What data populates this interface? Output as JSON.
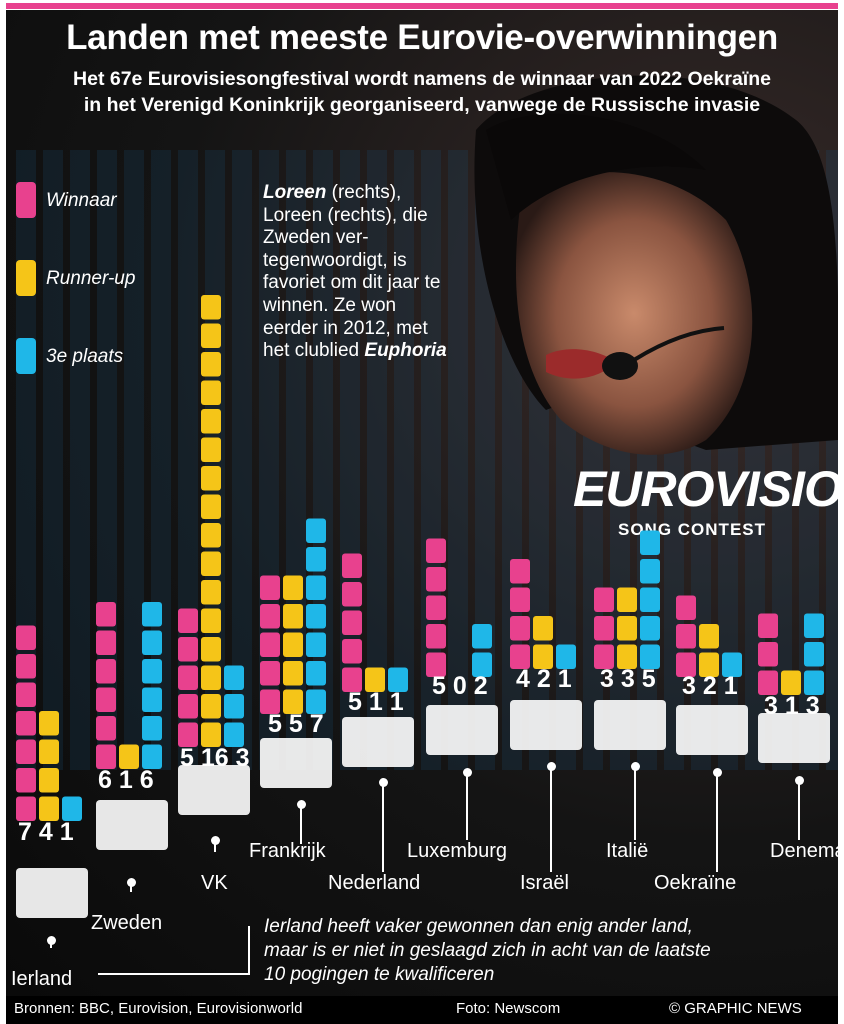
{
  "header": {
    "title": "Landen met meeste Eurovie-overwinningen",
    "subtitle_line1": "Het 67e Eurovisiesongfestival wordt namens de winnaar van 2022 Oekraïne",
    "subtitle_line2": "in het Verenigd Koninkrijk georganiseerd, vanwege de Russische invasie"
  },
  "legend": {
    "winner": "Winnaar",
    "runner_up": "Runner-up",
    "third": "3e plaats"
  },
  "colors": {
    "winner": "#e8418e",
    "runner_up": "#f5c518",
    "third": "#1fb7e8",
    "accent_bar": "#e8418e"
  },
  "blurb": {
    "name": "Loreen",
    "lines": "(rechts), Loreen (rechts), die Zweden ver- tegenwoordigt, is favoriet om dit jaar te winnen. Ze won eerder in 2012, met het clublied",
    "song": "Euphoria"
  },
  "logo": {
    "word": "EUROVISION",
    "sub": "SONG CONTEST"
  },
  "note": {
    "line1": "Ierland heeft vaker gewonnen dan enig ander land,",
    "line2": "maar is er niet in geslaagd zich in acht van de laatste",
    "line3": "10 pogingen te kwalificeren"
  },
  "footer": {
    "sources": "Bronnen: BBC, Eurovision, Eurovisionworld",
    "photo": "Foto: Newscom",
    "credit": "© GRAPHIC NEWS"
  },
  "chart_data": {
    "type": "bar",
    "categories": [
      "Ierland",
      "Zweden",
      "VK",
      "Frankrijk",
      "Nederland",
      "Luxemburg",
      "Israël",
      "Italië",
      "Oekraïne",
      "Denemarken"
    ],
    "count_labels": [
      "7 4 1",
      "6 1 6",
      "5 16 3",
      "5 5 7",
      "5 1 1",
      "5 0 2",
      "4 2 1",
      "3 3 5",
      "3 2 1",
      "3 1 3"
    ],
    "series": [
      {
        "name": "Winnaar",
        "values": [
          7,
          6,
          5,
          5,
          5,
          5,
          4,
          3,
          3,
          3
        ]
      },
      {
        "name": "Runner-up",
        "values": [
          4,
          1,
          16,
          5,
          1,
          0,
          2,
          3,
          2,
          1
        ]
      },
      {
        "name": "3e plaats",
        "values": [
          1,
          6,
          3,
          7,
          1,
          2,
          1,
          5,
          1,
          3
        ]
      }
    ]
  }
}
